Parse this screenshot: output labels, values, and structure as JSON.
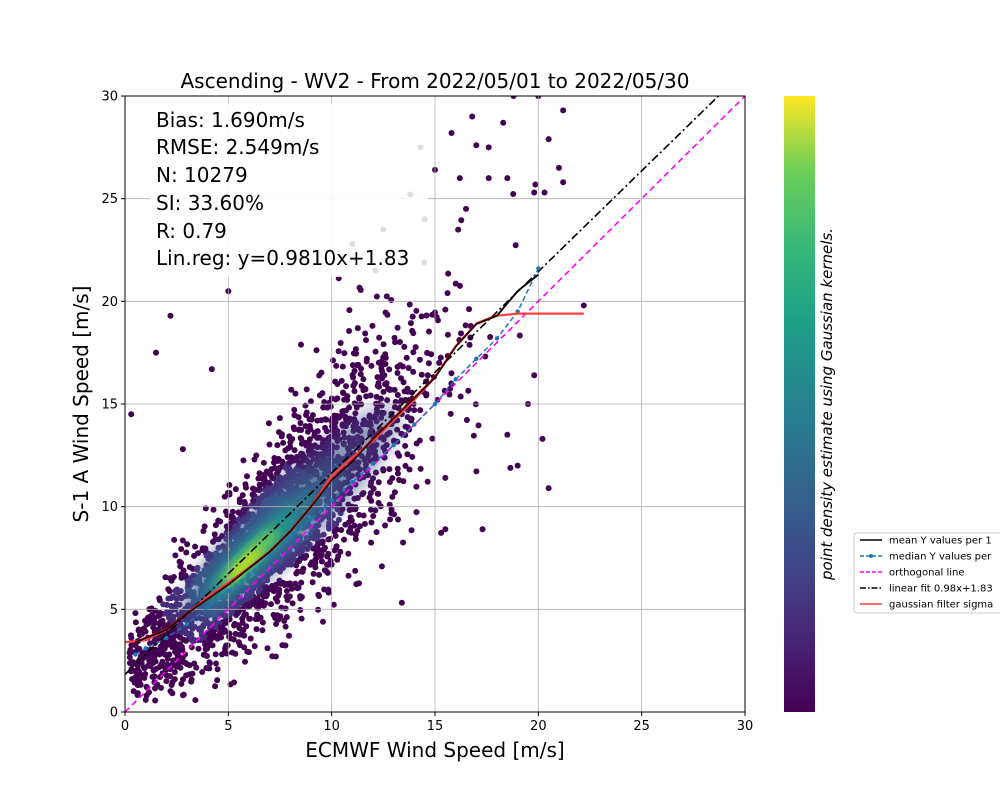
{
  "chart_data": {
    "type": "scatter",
    "title": "Ascending - WV2 - From 2022/05/01 to 2022/05/30",
    "xlabel": "ECMWF Wind Speed [m/s]",
    "ylabel": "S-1 A Wind Speed [m/s]",
    "xlim": [
      0,
      30
    ],
    "ylim": [
      0,
      30
    ],
    "xticks": [
      "0",
      "5",
      "10",
      "15",
      "20",
      "25",
      "30"
    ],
    "yticks": [
      "0",
      "5",
      "10",
      "15",
      "20",
      "25",
      "30"
    ],
    "grid": true,
    "colormap": "viridis",
    "colorbar_label": "point density estimate using Gaussian kernels.",
    "stats": {
      "bias": "Bias: 1.690m/s",
      "rmse": "RMSE: 2.549m/s",
      "n": "N: 10279",
      "si": "SI: 33.60%",
      "r": "R: 0.79",
      "linreg": "Lin.reg: y=0.9810x+1.83"
    },
    "linear_fit": {
      "slope": 0.981,
      "intercept": 1.83
    },
    "density_core": {
      "x": 6.0,
      "y": 7.5
    },
    "legend": {
      "placement": "right, outside plot",
      "entries": [
        {
          "label": "mean Y values per 1",
          "color": "#000000",
          "style": "solid"
        },
        {
          "label": "median Y values per",
          "color": "#1f77b4",
          "style": "dashed-marker"
        },
        {
          "label": "orthogonal line",
          "color": "#ff00ff",
          "style": "dashed"
        },
        {
          "label": "linear fit 0.98x+1.83",
          "color": "#000000",
          "style": "dashdot"
        },
        {
          "label": "gaussian filter sigma",
          "color": "#ff4040",
          "style": "solid"
        }
      ]
    },
    "series": [
      {
        "name": "mean Y values per 1",
        "x": [
          0.5,
          1,
          2,
          3,
          4,
          5,
          6,
          7,
          8,
          9,
          10,
          11,
          12,
          13,
          14,
          15,
          16,
          17,
          18,
          19,
          20
        ],
        "y": [
          3.4,
          3.6,
          4.0,
          4.8,
          5.5,
          6.2,
          7.0,
          7.8,
          8.8,
          10.0,
          11.3,
          12.2,
          13.3,
          14.3,
          15.3,
          16.3,
          17.8,
          18.9,
          19.3,
          20.5,
          21.3
        ]
      },
      {
        "name": "median Y values per",
        "x": [
          0.5,
          1,
          2,
          3,
          4,
          5,
          6,
          7,
          8,
          9,
          10,
          11,
          12,
          13,
          14,
          15,
          16,
          17,
          18,
          19,
          20
        ],
        "y": [
          2.8,
          3.1,
          3.6,
          4.3,
          5.1,
          5.9,
          6.7,
          7.6,
          8.5,
          9.4,
          10.3,
          11.2,
          12.1,
          13.0,
          14.0,
          15.0,
          16.2,
          17.2,
          18.2,
          19.5,
          21.6
        ]
      },
      {
        "name": "gaussian filter sigma",
        "x": [
          0,
          1,
          2,
          3,
          4,
          5,
          6,
          7,
          8,
          9,
          10,
          11,
          12,
          13,
          14,
          15,
          16,
          17,
          18,
          19,
          20,
          21,
          22.2
        ],
        "y": [
          3.4,
          3.5,
          4.0,
          4.8,
          5.6,
          6.3,
          7.0,
          7.8,
          8.8,
          10.0,
          11.5,
          12.4,
          13.2,
          14.2,
          15.2,
          16.3,
          17.8,
          18.9,
          19.3,
          19.4,
          19.4,
          19.4,
          19.4
        ]
      }
    ],
    "outlier_points": [
      [
        0.3,
        14.5
      ],
      [
        2.2,
        19.3
      ],
      [
        5.0,
        20.5
      ],
      [
        4.2,
        16.7
      ],
      [
        18.8,
        30.0
      ],
      [
        20.0,
        30.0
      ],
      [
        21.2,
        29.3
      ],
      [
        20.5,
        27.9
      ],
      [
        21.0,
        26.5
      ],
      [
        19.8,
        25.3
      ],
      [
        20.3,
        25.3
      ],
      [
        21.2,
        25.8
      ],
      [
        18.3,
        28.7
      ],
      [
        17.6,
        27.5
      ],
      [
        17.0,
        27.6
      ],
      [
        18.5,
        26.0
      ],
      [
        16.2,
        26.0
      ],
      [
        17.6,
        26.0
      ],
      [
        22.2,
        19.8
      ],
      [
        19.8,
        16.4
      ],
      [
        20.5,
        10.9
      ],
      [
        17.3,
        8.9
      ],
      [
        15.5,
        8.9
      ],
      [
        15.5,
        11.4
      ],
      [
        20.2,
        13.3
      ],
      [
        19.5,
        15.0
      ],
      [
        7.3,
        2.7
      ],
      [
        5.2,
        2.9
      ],
      [
        1.5,
        17.5
      ],
      [
        2.8,
        12.8
      ],
      [
        13.8,
        25.2
      ],
      [
        14.5,
        24.0
      ],
      [
        12.5,
        23.5
      ],
      [
        11.0,
        22.8
      ],
      [
        16.5,
        24.5
      ],
      [
        15.0,
        26.4
      ],
      [
        16.8,
        29.0
      ],
      [
        15.8,
        28.2
      ],
      [
        14.3,
        27.5
      ],
      [
        12.1,
        21.5
      ],
      [
        18.5,
        13.5
      ],
      [
        19.0,
        12.0
      ]
    ]
  }
}
